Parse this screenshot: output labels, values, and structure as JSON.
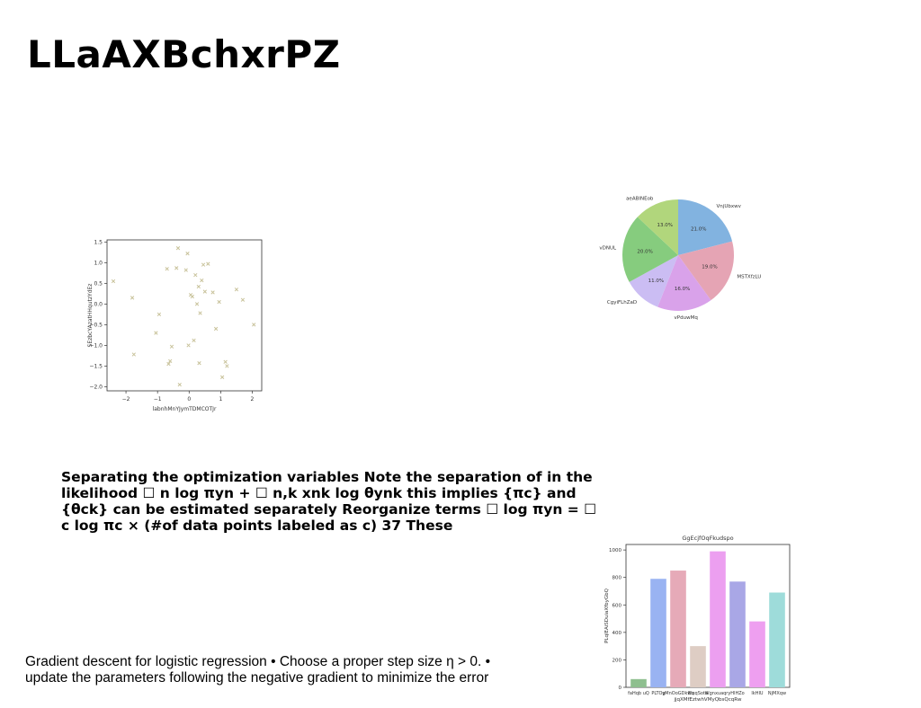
{
  "slide": {
    "title": "LLaAXBchxrPZ",
    "paragraph": "Separating the optimization variables Note the separation of in the likelihood ☐ n log πyn + ☐ n,k xnk log θynk this implies {πc} and {θck} can be estimated separately Reorganize terms ☐ log πyn = ☐ c log πc × (#of data points labeled as c) 37 These",
    "footer": "Gradient descent for logistic regression • Choose a proper step size η > 0. • update the parameters following the negative gradient to minimize the error"
  },
  "chart_data": [
    {
      "type": "scatter",
      "marker": "x",
      "color": "#c8c29a",
      "xlabel": "labnhMnYJymTDMCOTJr",
      "ylabel": "SEzbcYAzatHHqutzYdEz",
      "xlim": [
        -2.6,
        2.3
      ],
      "ylim": [
        -2.1,
        1.55
      ],
      "xticks": [
        -2,
        -1,
        0,
        1,
        2
      ],
      "yticks": [
        -2.0,
        -1.5,
        -1.0,
        -0.5,
        0.0,
        0.5,
        1.0,
        1.5
      ],
      "points": [
        [
          -2.4,
          0.55
        ],
        [
          -1.8,
          0.15
        ],
        [
          -1.75,
          -1.22
        ],
        [
          -1.05,
          -0.7
        ],
        [
          -0.95,
          -0.25
        ],
        [
          -0.7,
          0.85
        ],
        [
          -0.65,
          -1.45
        ],
        [
          -0.6,
          -1.38
        ],
        [
          -0.55,
          -1.03
        ],
        [
          -0.4,
          0.87
        ],
        [
          -0.35,
          1.35
        ],
        [
          -0.3,
          -1.95
        ],
        [
          -0.1,
          0.82
        ],
        [
          -0.05,
          1.22
        ],
        [
          -0.02,
          -1.0
        ],
        [
          0.05,
          0.22
        ],
        [
          0.1,
          0.18
        ],
        [
          0.15,
          -0.88
        ],
        [
          0.2,
          0.7
        ],
        [
          0.25,
          0.0
        ],
        [
          0.3,
          0.42
        ],
        [
          0.32,
          -1.43
        ],
        [
          0.35,
          -0.22
        ],
        [
          0.4,
          0.57
        ],
        [
          0.45,
          0.95
        ],
        [
          0.5,
          0.3
        ],
        [
          0.6,
          0.97
        ],
        [
          0.75,
          0.28
        ],
        [
          0.85,
          -0.6
        ],
        [
          0.95,
          0.05
        ],
        [
          1.05,
          -1.77
        ],
        [
          1.15,
          -1.4
        ],
        [
          1.2,
          -1.5
        ],
        [
          1.5,
          0.35
        ],
        [
          1.7,
          0.1
        ],
        [
          2.05,
          -0.5
        ]
      ]
    },
    {
      "type": "pie",
      "labels": [
        "VnjUbxwv",
        "MSTXfzLU",
        "vPduwMq",
        "CgyiFLhZaD",
        "vDNUL",
        "aeABINEob"
      ],
      "values": [
        21.0,
        19.0,
        16.0,
        11.0,
        20.0,
        13.0
      ],
      "value_labels": [
        "21.0%",
        "19.0%",
        "16.0%",
        "11.0%",
        "20.0%",
        "13.0%"
      ],
      "colors": [
        "#82b3e0",
        "#e5a4b4",
        "#d9a2ea",
        "#cbbdf3",
        "#86cc7e",
        "#b1d67c"
      ]
    },
    {
      "type": "bar",
      "title": "GgEcjfOqFkudspo",
      "xlabel": "jjqXMfEztwhVMyQbsQcqRw",
      "ylabel": "PLqlEAiSDuiaXfbyGbQ",
      "categories": [
        "faHqb uQ",
        "PLTOg",
        "yMnOoGDkwq",
        "ElxqSota",
        "Wgnxuaqry",
        "HlHZo",
        "lkHIU",
        "NjMXqw"
      ],
      "values": [
        60,
        790,
        850,
        300,
        990,
        770,
        480,
        690
      ],
      "colors": [
        "#8fbf8f",
        "#99b3f2",
        "#e6aab8",
        "#decdc4",
        "#ec9ff0",
        "#a9a7e6",
        "#ee9ff0",
        "#9edcda"
      ],
      "ylim": [
        0,
        1040
      ],
      "yticks": [
        0,
        200,
        400,
        600,
        800,
        1000
      ]
    }
  ]
}
